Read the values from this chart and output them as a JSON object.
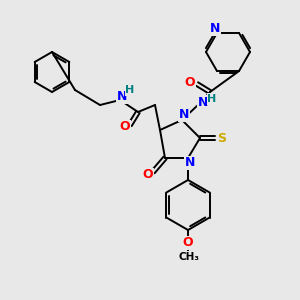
{
  "background_color": "#e8e8e8",
  "atom_colors": {
    "N": "#0000FF",
    "O": "#FF0000",
    "S": "#CCAA00",
    "H": "#008080",
    "C": "#000000"
  },
  "bond_color": "#000000",
  "bond_width": 1.4,
  "font_size_atoms": 8,
  "figsize": [
    3.0,
    3.0
  ],
  "dpi": 100
}
